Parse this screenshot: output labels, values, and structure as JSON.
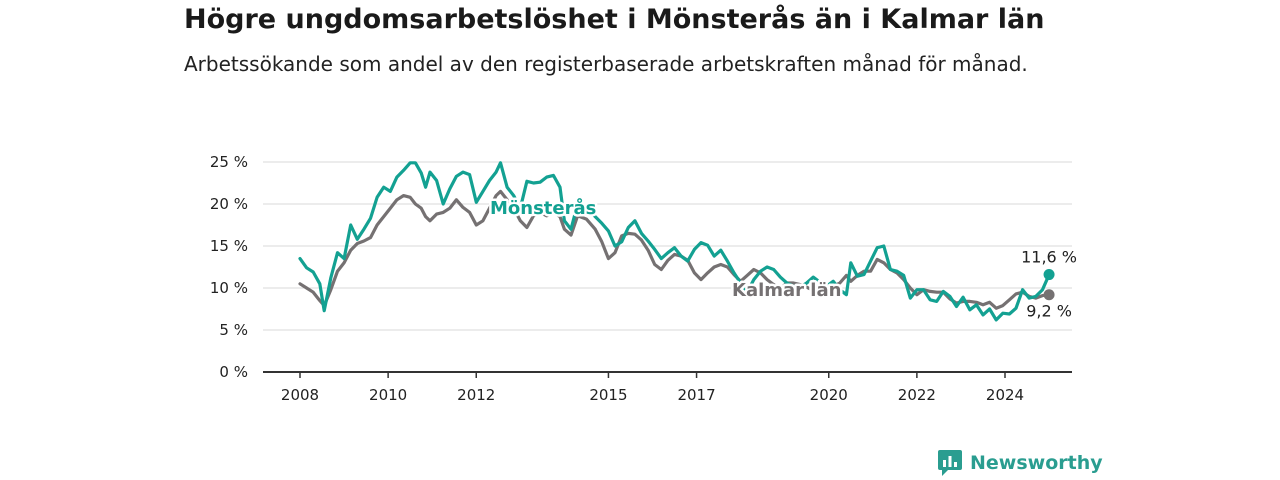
{
  "header": {
    "title": "Högre ungdomsarbetslöshet i Mönsterås än i Kalmar län",
    "subtitle": "Arbetssökande som andel av den registerbaserade arbetskraften månad för månad."
  },
  "brand": {
    "name": "Newsworthy",
    "icon": "newsworthy-logo-icon",
    "color": "#2a9d90"
  },
  "chart_data": {
    "type": "line",
    "title": "Högre ungdomsarbetslöshet i Mönsterås än i Kalmar län",
    "subtitle": "Arbetssökande som andel av den registerbaserade arbetskraften månad för månad.",
    "xlabel": "",
    "ylabel": "",
    "xlim": [
      2008,
      2025.5
    ],
    "ylim": [
      0,
      25
    ],
    "x_ticks": [
      2008,
      2010,
      2012,
      2015,
      2017,
      2020,
      2022,
      2024
    ],
    "x_tick_labels": [
      "2008",
      "2010",
      "2012",
      "2015",
      "2017",
      "2020",
      "2022",
      "2024"
    ],
    "y_ticks": [
      0,
      5,
      10,
      15,
      20,
      25
    ],
    "y_tick_labels": [
      "0 %",
      "5 %",
      "10 %",
      "15 %",
      "20 %",
      "25 %"
    ],
    "grid": "horizontal",
    "legend": "none",
    "series": [
      {
        "name": "Mönsterås",
        "color": "#13a192",
        "end_label": "11,6 %",
        "points": [
          [
            2008.0,
            13.5
          ],
          [
            2008.15,
            12.4
          ],
          [
            2008.3,
            11.9
          ],
          [
            2008.45,
            10.5
          ],
          [
            2008.55,
            7.3
          ],
          [
            2008.7,
            11.2
          ],
          [
            2008.85,
            14.2
          ],
          [
            2009.0,
            13.5
          ],
          [
            2009.15,
            17.5
          ],
          [
            2009.3,
            15.8
          ],
          [
            2009.45,
            17.0
          ],
          [
            2009.6,
            18.3
          ],
          [
            2009.75,
            20.8
          ],
          [
            2009.9,
            22.0
          ],
          [
            2010.05,
            21.5
          ],
          [
            2010.2,
            23.2
          ],
          [
            2010.35,
            24.0
          ],
          [
            2010.5,
            24.9
          ],
          [
            2010.62,
            24.9
          ],
          [
            2010.75,
            23.7
          ],
          [
            2010.85,
            22.0
          ],
          [
            2010.95,
            23.8
          ],
          [
            2011.1,
            22.8
          ],
          [
            2011.25,
            20.0
          ],
          [
            2011.4,
            21.8
          ],
          [
            2011.55,
            23.3
          ],
          [
            2011.7,
            23.8
          ],
          [
            2011.85,
            23.5
          ],
          [
            2012.0,
            20.2
          ],
          [
            2012.15,
            21.5
          ],
          [
            2012.3,
            22.8
          ],
          [
            2012.45,
            23.8
          ],
          [
            2012.55,
            24.9
          ],
          [
            2012.7,
            22.0
          ],
          [
            2012.85,
            21.0
          ],
          [
            2013.0,
            19.5
          ],
          [
            2013.15,
            22.7
          ],
          [
            2013.3,
            22.5
          ],
          [
            2013.45,
            22.6
          ],
          [
            2013.6,
            23.2
          ],
          [
            2013.75,
            23.4
          ],
          [
            2013.9,
            22.0
          ],
          [
            2014.0,
            18.0
          ],
          [
            2014.15,
            17.0
          ],
          [
            2014.3,
            20.0
          ],
          [
            2014.5,
            19.5
          ],
          [
            2014.7,
            18.5
          ],
          [
            2014.85,
            17.7
          ],
          [
            2015.0,
            16.8
          ],
          [
            2015.15,
            15.0
          ],
          [
            2015.3,
            15.5
          ],
          [
            2015.45,
            17.2
          ],
          [
            2015.6,
            18.0
          ],
          [
            2015.75,
            16.5
          ],
          [
            2015.9,
            15.6
          ],
          [
            2016.05,
            14.6
          ],
          [
            2016.2,
            13.5
          ],
          [
            2016.35,
            14.2
          ],
          [
            2016.5,
            14.8
          ],
          [
            2016.65,
            13.8
          ],
          [
            2016.8,
            13.2
          ],
          [
            2016.95,
            14.6
          ],
          [
            2017.1,
            15.4
          ],
          [
            2017.25,
            15.1
          ],
          [
            2017.4,
            13.8
          ],
          [
            2017.55,
            14.5
          ],
          [
            2017.7,
            13.2
          ],
          [
            2017.85,
            11.8
          ],
          [
            2018.0,
            10.6
          ],
          [
            2018.15,
            9.5
          ],
          [
            2018.3,
            11.0
          ],
          [
            2018.45,
            12.0
          ],
          [
            2018.6,
            12.5
          ],
          [
            2018.75,
            12.2
          ],
          [
            2018.9,
            11.3
          ],
          [
            2019.05,
            10.6
          ],
          [
            2019.2,
            10.2
          ],
          [
            2019.35,
            10.1
          ],
          [
            2019.5,
            10.6
          ],
          [
            2019.65,
            11.3
          ],
          [
            2019.8,
            10.7
          ],
          [
            2019.95,
            10.2
          ],
          [
            2020.1,
            10.8
          ],
          [
            2020.25,
            9.8
          ],
          [
            2020.4,
            9.2
          ],
          [
            2020.5,
            13.0
          ],
          [
            2020.65,
            11.4
          ],
          [
            2020.8,
            11.6
          ],
          [
            2020.95,
            13.2
          ],
          [
            2021.1,
            14.8
          ],
          [
            2021.25,
            15.0
          ],
          [
            2021.4,
            12.2
          ],
          [
            2021.55,
            12.0
          ],
          [
            2021.7,
            11.5
          ],
          [
            2021.85,
            8.8
          ],
          [
            2022.0,
            9.8
          ],
          [
            2022.15,
            9.8
          ],
          [
            2022.3,
            8.6
          ],
          [
            2022.45,
            8.4
          ],
          [
            2022.6,
            9.6
          ],
          [
            2022.75,
            9.0
          ],
          [
            2022.9,
            7.8
          ],
          [
            2023.05,
            8.9
          ],
          [
            2023.2,
            7.4
          ],
          [
            2023.35,
            8.0
          ],
          [
            2023.5,
            6.8
          ],
          [
            2023.65,
            7.5
          ],
          [
            2023.8,
            6.2
          ],
          [
            2023.95,
            7.0
          ],
          [
            2024.1,
            6.9
          ],
          [
            2024.25,
            7.6
          ],
          [
            2024.4,
            9.8
          ],
          [
            2024.55,
            8.8
          ],
          [
            2024.7,
            9.0
          ],
          [
            2024.85,
            9.8
          ],
          [
            2025.0,
            11.6
          ]
        ]
      },
      {
        "name": "Kalmar län",
        "color": "#757172",
        "end_label": "9,2 %",
        "points": [
          [
            2008.0,
            10.5
          ],
          [
            2008.15,
            10.0
          ],
          [
            2008.3,
            9.5
          ],
          [
            2008.45,
            8.5
          ],
          [
            2008.55,
            7.9
          ],
          [
            2008.7,
            9.8
          ],
          [
            2008.85,
            12.0
          ],
          [
            2009.0,
            13.0
          ],
          [
            2009.15,
            14.5
          ],
          [
            2009.3,
            15.3
          ],
          [
            2009.45,
            15.6
          ],
          [
            2009.6,
            16.0
          ],
          [
            2009.75,
            17.5
          ],
          [
            2009.9,
            18.5
          ],
          [
            2010.05,
            19.5
          ],
          [
            2010.2,
            20.5
          ],
          [
            2010.35,
            21.0
          ],
          [
            2010.5,
            20.8
          ],
          [
            2010.62,
            20.0
          ],
          [
            2010.75,
            19.5
          ],
          [
            2010.85,
            18.5
          ],
          [
            2010.95,
            18.0
          ],
          [
            2011.1,
            18.8
          ],
          [
            2011.25,
            19.0
          ],
          [
            2011.4,
            19.5
          ],
          [
            2011.55,
            20.5
          ],
          [
            2011.7,
            19.6
          ],
          [
            2011.85,
            19.0
          ],
          [
            2012.0,
            17.5
          ],
          [
            2012.15,
            18.0
          ],
          [
            2012.3,
            19.5
          ],
          [
            2012.45,
            21.0
          ],
          [
            2012.55,
            21.5
          ],
          [
            2012.7,
            20.5
          ],
          [
            2012.85,
            19.5
          ],
          [
            2013.0,
            18.0
          ],
          [
            2013.15,
            17.2
          ],
          [
            2013.3,
            18.6
          ],
          [
            2013.45,
            19.0
          ],
          [
            2013.6,
            18.6
          ],
          [
            2013.75,
            19.0
          ],
          [
            2013.9,
            18.5
          ],
          [
            2014.0,
            17.0
          ],
          [
            2014.15,
            16.3
          ],
          [
            2014.3,
            18.6
          ],
          [
            2014.5,
            18.2
          ],
          [
            2014.7,
            17.0
          ],
          [
            2014.85,
            15.5
          ],
          [
            2015.0,
            13.5
          ],
          [
            2015.15,
            14.2
          ],
          [
            2015.3,
            16.2
          ],
          [
            2015.45,
            16.5
          ],
          [
            2015.6,
            16.4
          ],
          [
            2015.75,
            15.7
          ],
          [
            2015.9,
            14.5
          ],
          [
            2016.05,
            12.8
          ],
          [
            2016.2,
            12.2
          ],
          [
            2016.35,
            13.3
          ],
          [
            2016.5,
            14.0
          ],
          [
            2016.65,
            13.8
          ],
          [
            2016.8,
            13.3
          ],
          [
            2016.95,
            11.8
          ],
          [
            2017.1,
            11.0
          ],
          [
            2017.25,
            11.8
          ],
          [
            2017.4,
            12.5
          ],
          [
            2017.55,
            12.8
          ],
          [
            2017.7,
            12.5
          ],
          [
            2017.85,
            11.6
          ],
          [
            2018.0,
            10.8
          ],
          [
            2018.15,
            11.5
          ],
          [
            2018.3,
            12.2
          ],
          [
            2018.45,
            11.8
          ],
          [
            2018.6,
            11.0
          ],
          [
            2018.75,
            10.4
          ],
          [
            2018.9,
            9.9
          ],
          [
            2019.05,
            10.6
          ],
          [
            2019.2,
            10.6
          ],
          [
            2019.35,
            10.4
          ],
          [
            2019.5,
            10.1
          ],
          [
            2019.65,
            9.7
          ],
          [
            2019.8,
            9.2
          ],
          [
            2019.95,
            10.0
          ],
          [
            2020.1,
            10.2
          ],
          [
            2020.25,
            10.6
          ],
          [
            2020.4,
            11.5
          ],
          [
            2020.5,
            10.8
          ],
          [
            2020.65,
            11.5
          ],
          [
            2020.8,
            12.0
          ],
          [
            2020.95,
            12.0
          ],
          [
            2021.1,
            13.4
          ],
          [
            2021.25,
            13.0
          ],
          [
            2021.4,
            12.2
          ],
          [
            2021.55,
            11.8
          ],
          [
            2021.7,
            11.0
          ],
          [
            2021.85,
            10.0
          ],
          [
            2022.0,
            9.2
          ],
          [
            2022.15,
            9.8
          ],
          [
            2022.3,
            9.6
          ],
          [
            2022.45,
            9.5
          ],
          [
            2022.6,
            9.5
          ],
          [
            2022.75,
            8.7
          ],
          [
            2022.9,
            8.2
          ],
          [
            2023.05,
            8.4
          ],
          [
            2023.2,
            8.4
          ],
          [
            2023.35,
            8.3
          ],
          [
            2023.5,
            8.0
          ],
          [
            2023.65,
            8.3
          ],
          [
            2023.8,
            7.6
          ],
          [
            2023.95,
            7.9
          ],
          [
            2024.1,
            8.6
          ],
          [
            2024.25,
            9.3
          ],
          [
            2024.4,
            9.5
          ],
          [
            2024.55,
            9.0
          ],
          [
            2024.7,
            8.8
          ],
          [
            2024.85,
            9.1
          ],
          [
            2025.0,
            9.2
          ]
        ]
      }
    ]
  }
}
